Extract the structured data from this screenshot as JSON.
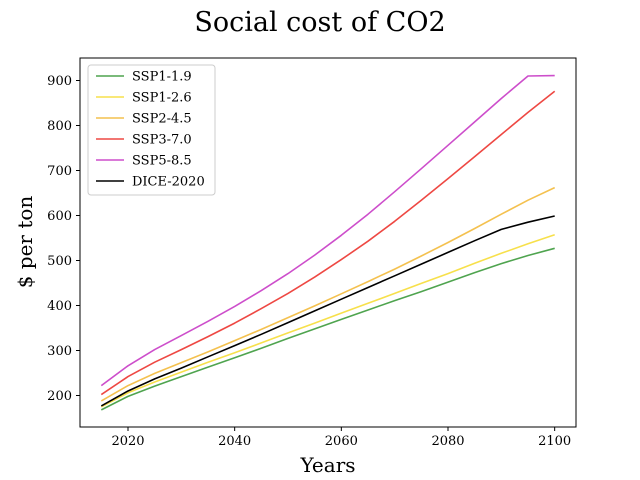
{
  "chart_data": {
    "type": "line",
    "title": "Social cost of CO2",
    "xlabel": "Years",
    "ylabel": "$ per ton",
    "xlim": [
      2011,
      2104
    ],
    "ylim": [
      130,
      950
    ],
    "x_ticks": [
      2020,
      2040,
      2060,
      2080,
      2100
    ],
    "y_ticks": [
      200,
      300,
      400,
      500,
      600,
      700,
      800,
      900
    ],
    "grid": false,
    "legend_position": "top-left",
    "x": [
      2015,
      2020,
      2025,
      2030,
      2035,
      2040,
      2045,
      2050,
      2055,
      2060,
      2065,
      2070,
      2075,
      2080,
      2085,
      2090,
      2095,
      2100
    ],
    "series": [
      {
        "name": "SSP1-1.9",
        "color": "#4fa44f",
        "values": [
          168,
          198,
          221,
          242,
          263,
          284,
          305,
          327,
          348,
          369,
          390,
          411,
          431,
          452,
          473,
          493,
          511,
          527
        ]
      },
      {
        "name": "SSP1-2.6",
        "color": "#f7e04b",
        "values": [
          175,
          206,
          230,
          252,
          274,
          295,
          317,
          339,
          361,
          383,
          405,
          427,
          449,
          471,
          494,
          516,
          537,
          557
        ]
      },
      {
        "name": "SSP2-4.5",
        "color": "#f4c14f",
        "values": [
          188,
          222,
          249,
          273,
          297,
          322,
          347,
          373,
          399,
          426,
          453,
          481,
          510,
          540,
          571,
          603,
          634,
          662
        ]
      },
      {
        "name": "SSP3-7.0",
        "color": "#ee4843",
        "values": [
          202,
          242,
          274,
          302,
          331,
          361,
          393,
          427,
          463,
          502,
          543,
          587,
          634,
          682,
          731,
          780,
          829,
          876
        ]
      },
      {
        "name": "SSP5-8.5",
        "color": "#cd4ecb",
        "values": [
          222,
          266,
          302,
          333,
          365,
          398,
          433,
          471,
          512,
          556,
          603,
          653,
          704,
          756,
          808,
          860,
          910,
          911
        ]
      },
      {
        "name": "DICE-2020",
        "color": "#000000",
        "values": [
          177,
          210,
          237,
          261,
          286,
          311,
          336,
          362,
          388,
          414,
          440,
          466,
          492,
          518,
          544,
          569,
          585,
          599
        ]
      }
    ]
  }
}
